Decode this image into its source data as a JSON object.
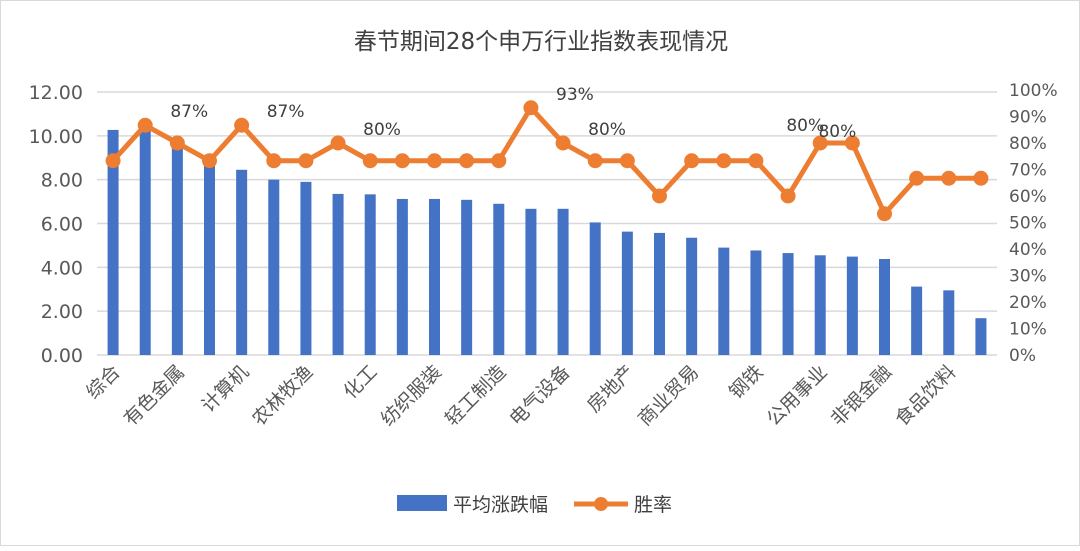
{
  "chart_data": {
    "type": "bar+line",
    "title": "春节期间28个申万行业指数表现情况",
    "categories": [
      "综合",
      "",
      "有色金属",
      "",
      "计算机",
      "",
      "农林牧渔",
      "",
      "化工",
      "",
      "纺织服装",
      "",
      "轻工制造",
      "",
      "电气设备",
      "",
      "房地产",
      "",
      "商业贸易",
      "",
      "钢铁",
      "",
      "公用事业",
      "",
      "非银金融",
      "",
      "食品饮料",
      ""
    ],
    "series": [
      {
        "name": "平均涨跌幅",
        "type": "bar",
        "axis": "left",
        "color": "#4472C4",
        "values": [
          10.27,
          10.4,
          9.6,
          8.9,
          8.45,
          8.0,
          7.9,
          7.35,
          7.33,
          7.12,
          7.12,
          7.08,
          6.9,
          6.67,
          6.67,
          6.05,
          5.63,
          5.57,
          5.35,
          4.9,
          4.77,
          4.65,
          4.55,
          4.49,
          4.38,
          3.12,
          2.95,
          1.68
        ]
      },
      {
        "name": "胜率",
        "type": "line",
        "axis": "right",
        "color": "#ED7D31",
        "values": [
          73.3,
          86.7,
          80,
          73.3,
          86.7,
          73.3,
          73.3,
          80,
          73.3,
          73.3,
          73.3,
          73.3,
          73.3,
          93.3,
          80,
          73.3,
          73.3,
          60,
          73.3,
          73.3,
          73.3,
          60,
          80,
          80,
          53.3,
          66.7,
          66.7,
          66.7
        ]
      }
    ],
    "data_labels": [
      {
        "index": 1,
        "text": "87%"
      },
      {
        "index": 4,
        "text": "87%"
      },
      {
        "index": 7,
        "text": "80%"
      },
      {
        "index": 13,
        "text": "93%"
      },
      {
        "index": 14,
        "text": "80%"
      },
      {
        "index": 22,
        "text": "80%"
      },
      {
        "index": 23,
        "text": "80%"
      }
    ],
    "ylim_left": [
      0,
      12
    ],
    "yticks_left": [
      "0.00",
      "2.00",
      "4.00",
      "6.00",
      "8.00",
      "10.00",
      "12.00"
    ],
    "ylim_right": [
      0,
      100
    ],
    "yticks_right": [
      "0%",
      "10%",
      "20%",
      "30%",
      "40%",
      "50%",
      "60%",
      "70%",
      "80%",
      "90%",
      "100%"
    ],
    "grid": true,
    "legend": "bottom"
  }
}
